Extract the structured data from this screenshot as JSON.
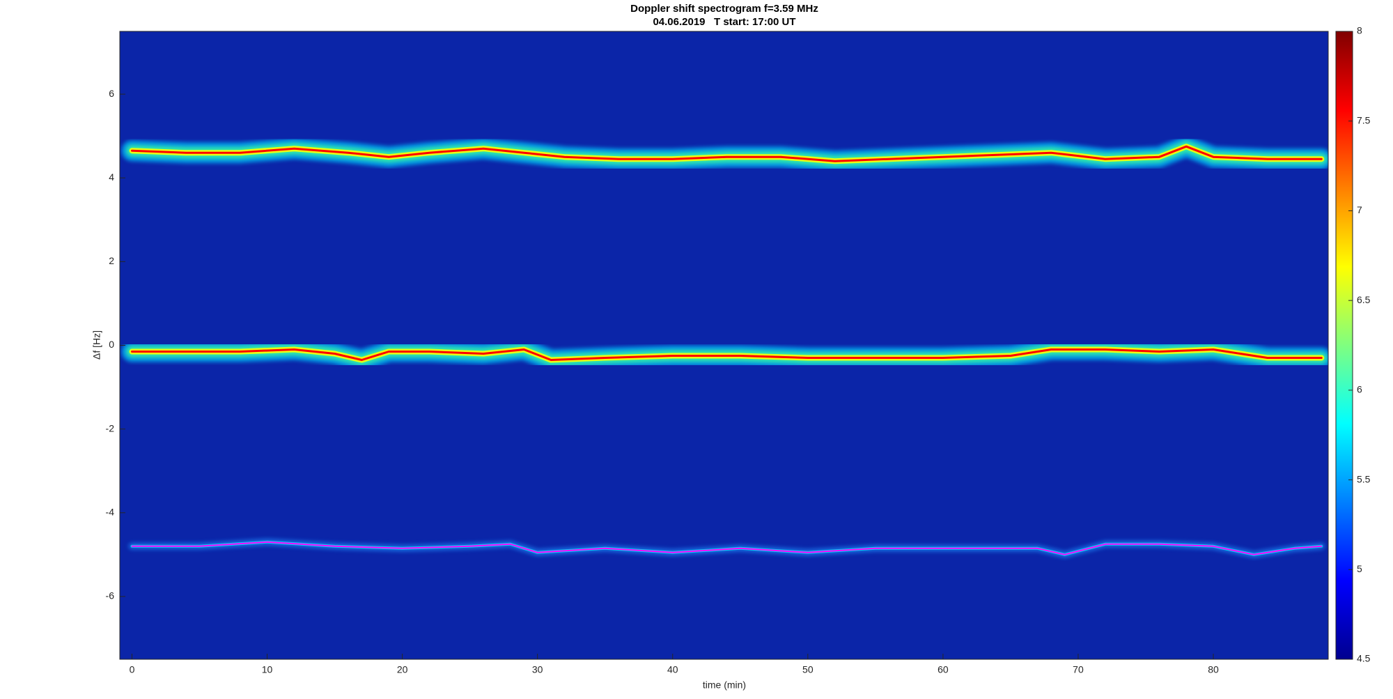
{
  "chart_data": {
    "type": "spectrogram",
    "title": "Doppler shift spectrogram f=3.59 MHz",
    "subtitle": "04.06.2019   T start: 17:00 UT",
    "xlabel": "time (min)",
    "ylabel": "Δf [Hz]",
    "xlim": [
      -0.9,
      88.5
    ],
    "ylim": [
      -7.5,
      7.5
    ],
    "xticks": [
      0,
      10,
      20,
      30,
      40,
      50,
      60,
      70,
      80
    ],
    "yticks": [
      -6,
      -4,
      -2,
      0,
      2,
      4,
      6
    ],
    "clim": [
      4.5,
      8
    ],
    "cticks": [
      4.5,
      5,
      5.5,
      6,
      6.5,
      7,
      7.5,
      8
    ],
    "series": [
      {
        "color": "#ff0000",
        "x": [
          0,
          4,
          8,
          12,
          16,
          19,
          22,
          26,
          29,
          32,
          36,
          40,
          44,
          48,
          52,
          56,
          60,
          64,
          68,
          72,
          76,
          78,
          80,
          84,
          88
        ],
        "values": [
          4.65,
          4.6,
          4.6,
          4.7,
          4.6,
          4.5,
          4.6,
          4.7,
          4.6,
          4.5,
          4.45,
          4.45,
          4.5,
          4.5,
          4.4,
          4.45,
          4.5,
          4.55,
          4.6,
          4.45,
          4.5,
          4.75,
          4.5,
          4.45,
          4.45
        ]
      },
      {
        "color": "#ff0000",
        "x": [
          0,
          4,
          8,
          12,
          15,
          17,
          19,
          22,
          26,
          29,
          31,
          35,
          40,
          45,
          50,
          55,
          60,
          65,
          68,
          72,
          76,
          80,
          84,
          88
        ],
        "values": [
          -0.15,
          -0.15,
          -0.15,
          -0.1,
          -0.2,
          -0.35,
          -0.15,
          -0.15,
          -0.2,
          -0.1,
          -0.35,
          -0.3,
          -0.25,
          -0.25,
          -0.3,
          -0.3,
          -0.3,
          -0.25,
          -0.1,
          -0.1,
          -0.15,
          -0.1,
          -0.3,
          -0.3
        ]
      },
      {
        "color": "#ff00ff",
        "x": [
          0,
          5,
          10,
          15,
          20,
          25,
          28,
          30,
          35,
          40,
          45,
          50,
          55,
          60,
          65,
          67,
          69,
          72,
          76,
          80,
          83,
          86,
          88
        ],
        "values": [
          -4.8,
          -4.8,
          -4.7,
          -4.8,
          -4.85,
          -4.8,
          -4.75,
          -4.95,
          -4.85,
          -4.95,
          -4.85,
          -4.95,
          -4.85,
          -4.85,
          -4.85,
          -4.85,
          -5.0,
          -4.75,
          -4.75,
          -4.8,
          -5.0,
          -4.85,
          -4.8
        ]
      }
    ]
  }
}
